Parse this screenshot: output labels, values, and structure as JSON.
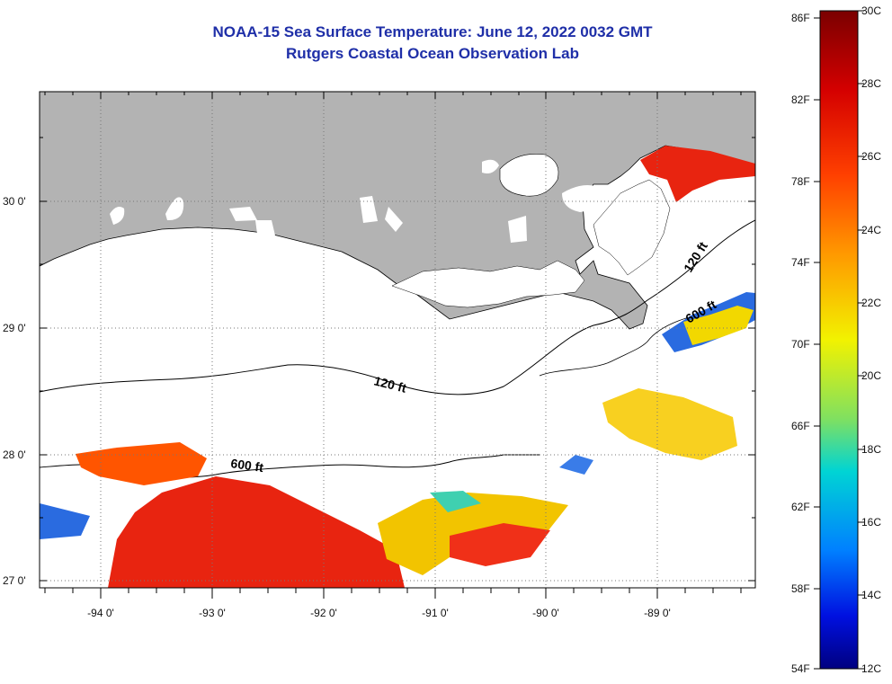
{
  "title": "NOAA-15 Sea Surface Temperature:  June 12, 2022 0032 GMT",
  "subtitle": "Rutgers Coastal Ocean Observation Lab",
  "lat_labels": [
    "30 0'",
    "29 0'",
    "28 0'",
    "27 0'"
  ],
  "lon_labels": [
    "-94 0'",
    "-93 0'",
    "-92 0'",
    "-91 0'",
    "-90 0'",
    "-89 0'"
  ],
  "contours": {
    "shelf_120": "120 ft",
    "slope_600": "600 ft"
  },
  "colorbar": {
    "fahrenheit": [
      "86F",
      "82F",
      "78F",
      "74F",
      "70F",
      "66F",
      "62F",
      "58F",
      "54F"
    ],
    "celsius": [
      "30C",
      "28C",
      "26C",
      "24C",
      "22C",
      "20C",
      "18C",
      "16C",
      "14C",
      "12C"
    ]
  },
  "colors": {
    "land": "#b3b3b3",
    "title": "#1f2fa8",
    "warm": "#e82410",
    "cool": "#2a6be0"
  }
}
